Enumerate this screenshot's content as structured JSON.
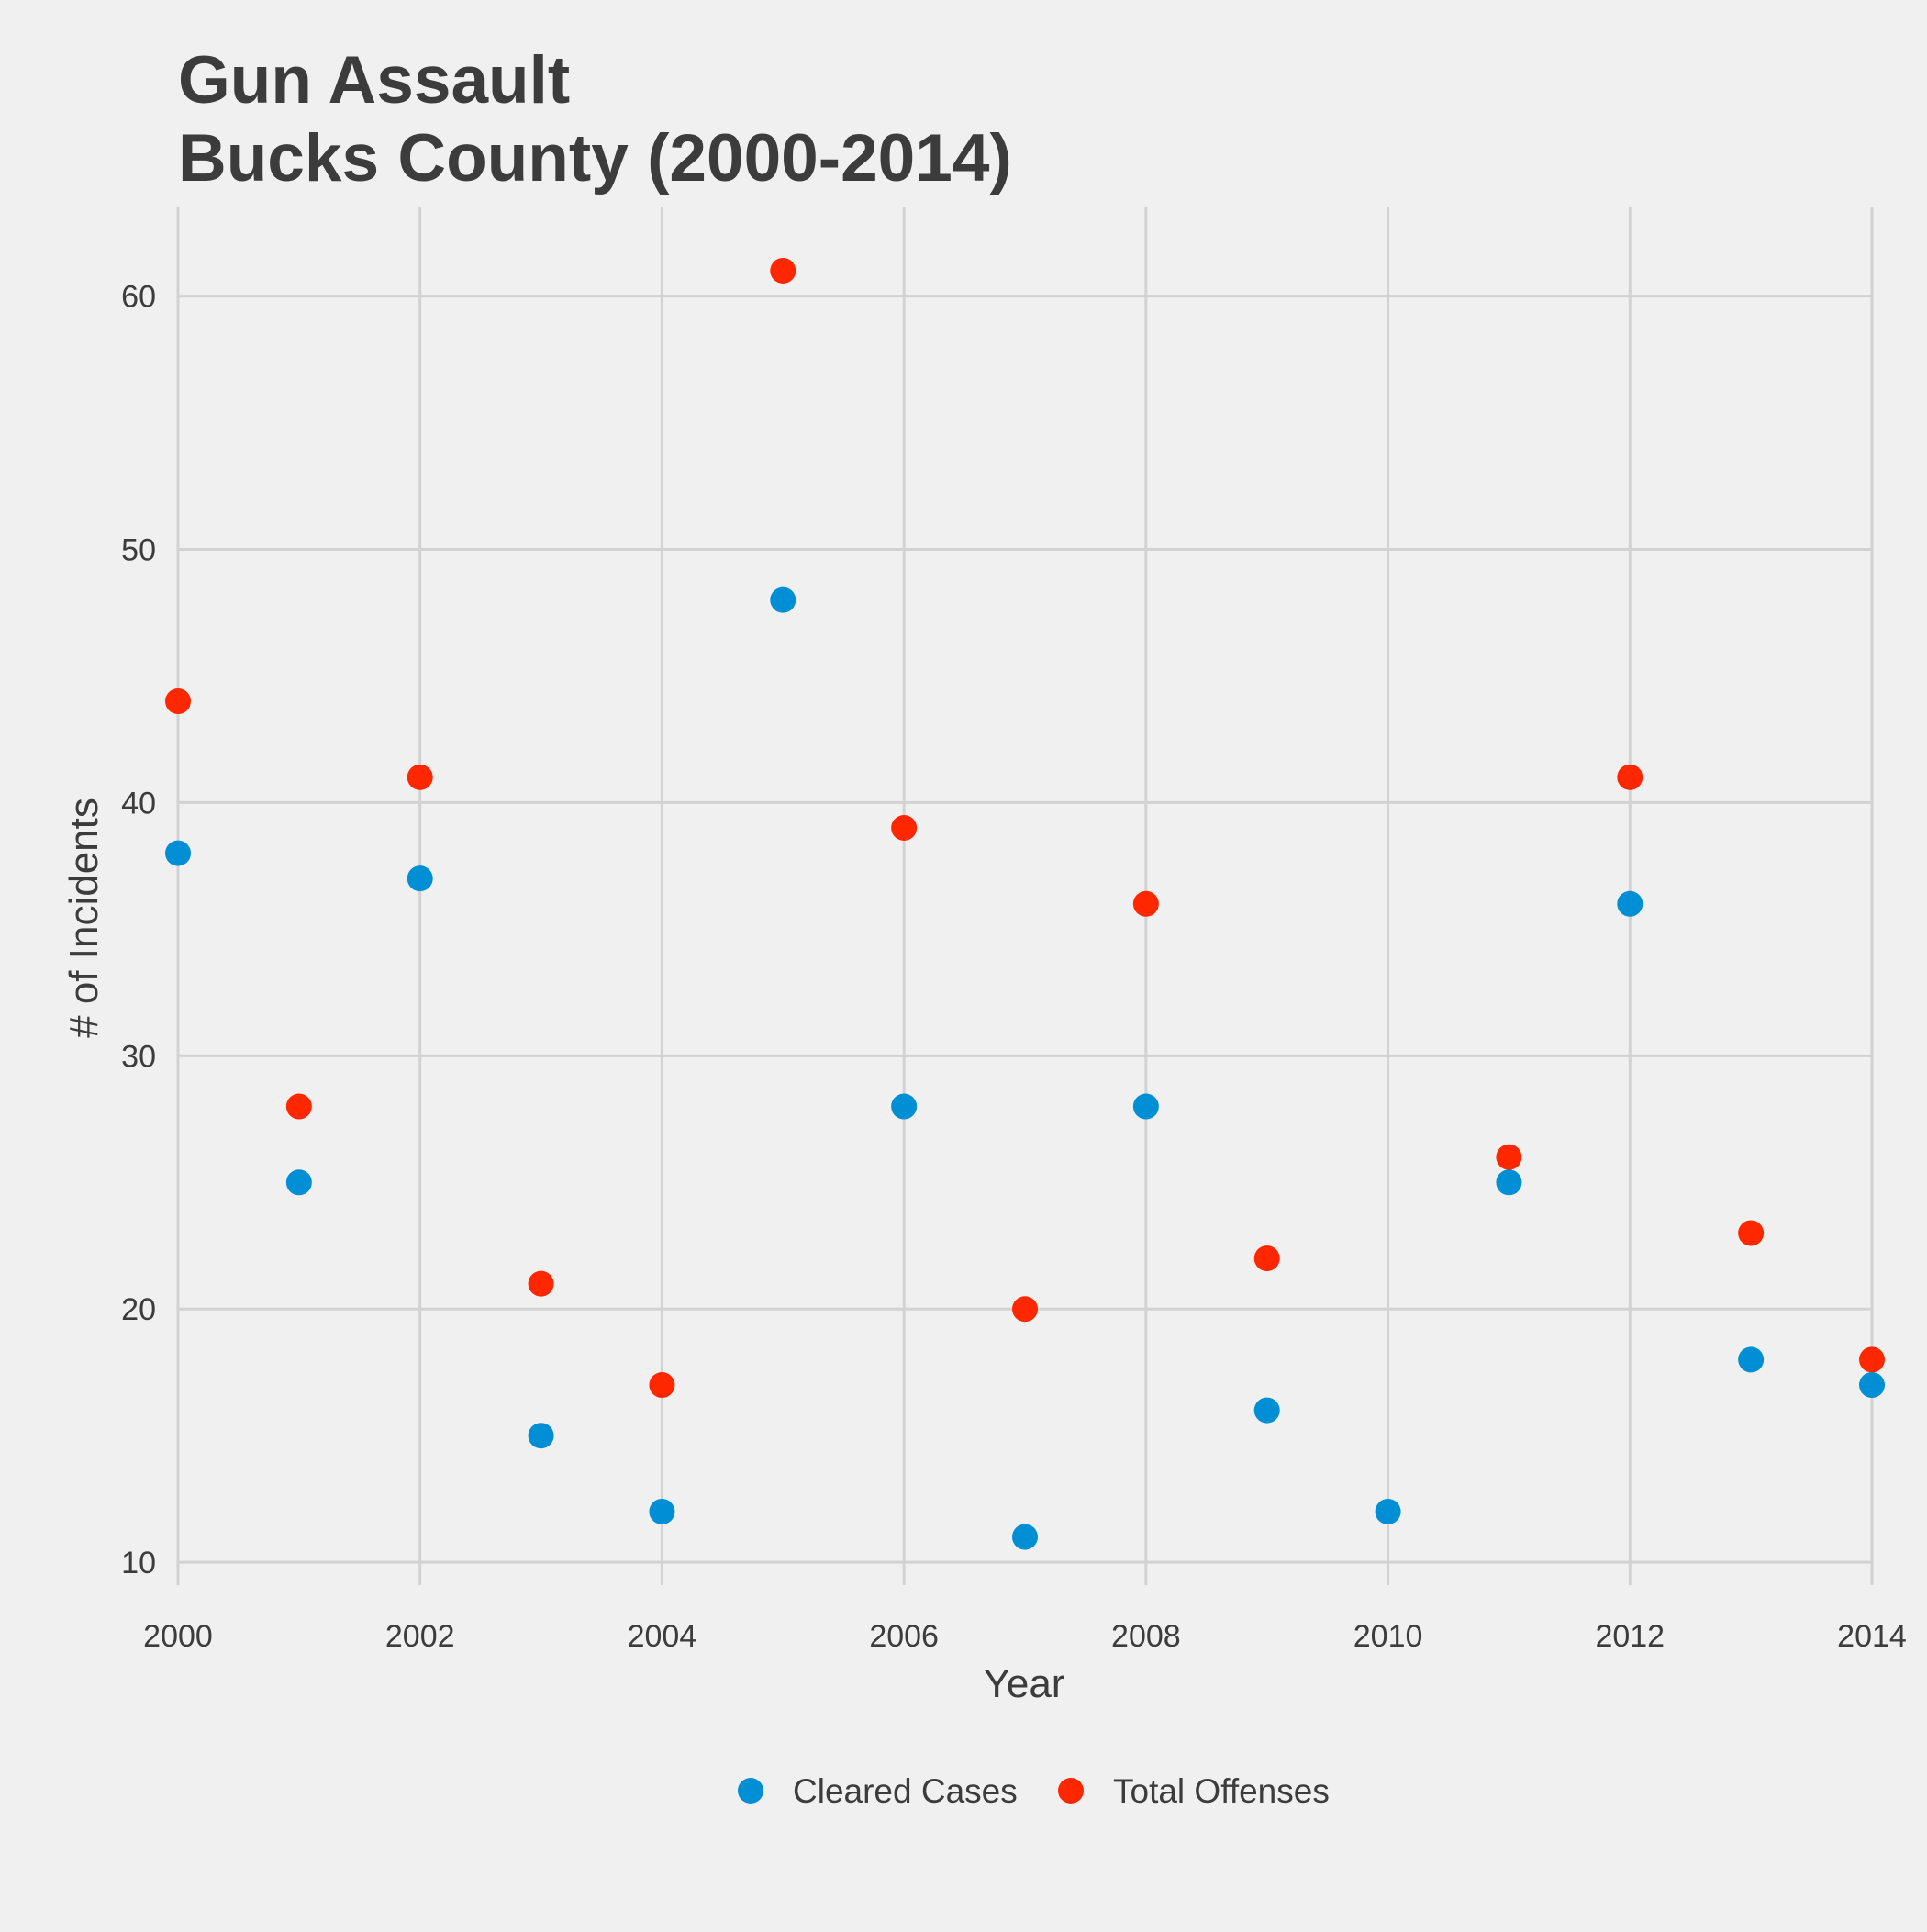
{
  "chart_data": {
    "type": "scatter",
    "title": "Gun Assault",
    "subtitle": "Bucks County (2000-2014)",
    "xlabel": "Year",
    "ylabel": "# of Incidents",
    "xlim": [
      2000,
      2014
    ],
    "ylim": [
      9.1,
      63.5
    ],
    "x_ticks": [
      2000,
      2002,
      2004,
      2006,
      2008,
      2010,
      2012,
      2014
    ],
    "y_ticks": [
      10,
      20,
      30,
      40,
      50,
      60
    ],
    "grid": true,
    "legend_position": "bottom",
    "background": "#f0f0f0",
    "grid_color": "#d2d2d2",
    "text_color": "#3c3c3c",
    "series": [
      {
        "name": "Cleared Cases",
        "color": "#008fd5",
        "points": [
          {
            "x": 2000,
            "y": 38
          },
          {
            "x": 2001,
            "y": 25
          },
          {
            "x": 2002,
            "y": 37
          },
          {
            "x": 2003,
            "y": 15
          },
          {
            "x": 2004,
            "y": 12
          },
          {
            "x": 2005,
            "y": 48
          },
          {
            "x": 2006,
            "y": 28
          },
          {
            "x": 2007,
            "y": 11
          },
          {
            "x": 2008,
            "y": 28
          },
          {
            "x": 2009,
            "y": 16
          },
          {
            "x": 2010,
            "y": 12
          },
          {
            "x": 2011,
            "y": 25
          },
          {
            "x": 2012,
            "y": 36
          },
          {
            "x": 2013,
            "y": 18
          },
          {
            "x": 2014,
            "y": 17
          }
        ]
      },
      {
        "name": "Total Offenses",
        "color": "#ff2700",
        "points": [
          {
            "x": 2000,
            "y": 44
          },
          {
            "x": 2001,
            "y": 28
          },
          {
            "x": 2002,
            "y": 41
          },
          {
            "x": 2003,
            "y": 21
          },
          {
            "x": 2004,
            "y": 17
          },
          {
            "x": 2005,
            "y": 61
          },
          {
            "x": 2006,
            "y": 39
          },
          {
            "x": 2007,
            "y": 20
          },
          {
            "x": 2008,
            "y": 36
          },
          {
            "x": 2009,
            "y": 22
          },
          {
            "x": 2011,
            "y": 26
          },
          {
            "x": 2012,
            "y": 41
          },
          {
            "x": 2013,
            "y": 23
          },
          {
            "x": 2014,
            "y": 18
          }
        ]
      }
    ]
  }
}
